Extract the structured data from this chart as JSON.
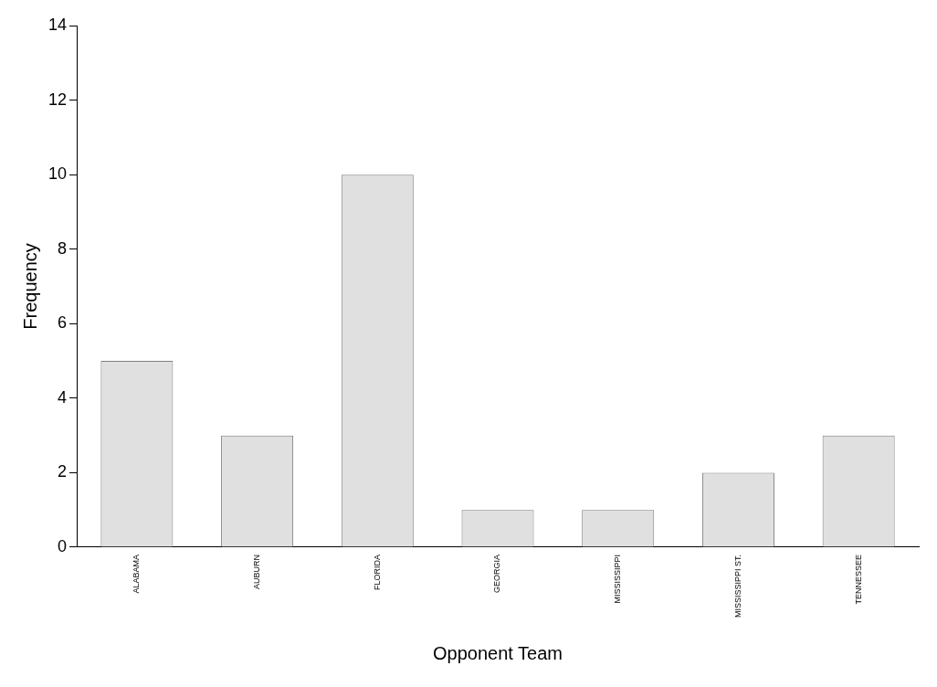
{
  "chart_data": {
    "type": "bar",
    "xlabel": "Opponent Team",
    "ylabel": "Frequency",
    "categories": [
      "ALABAMA",
      "AUBURN",
      "FLORIDA",
      "GEORGIA",
      "MISSISSIPPI",
      "MISSISSIPPI ST.",
      "TENNESSEE"
    ],
    "values": [
      5,
      3,
      10,
      1,
      1,
      2,
      3
    ],
    "color": "#e0e0e0",
    "ylim": [
      0,
      14
    ],
    "yticks": [
      0,
      2,
      4,
      6,
      8,
      10,
      12,
      14
    ],
    "grid": false,
    "legend": false
  }
}
